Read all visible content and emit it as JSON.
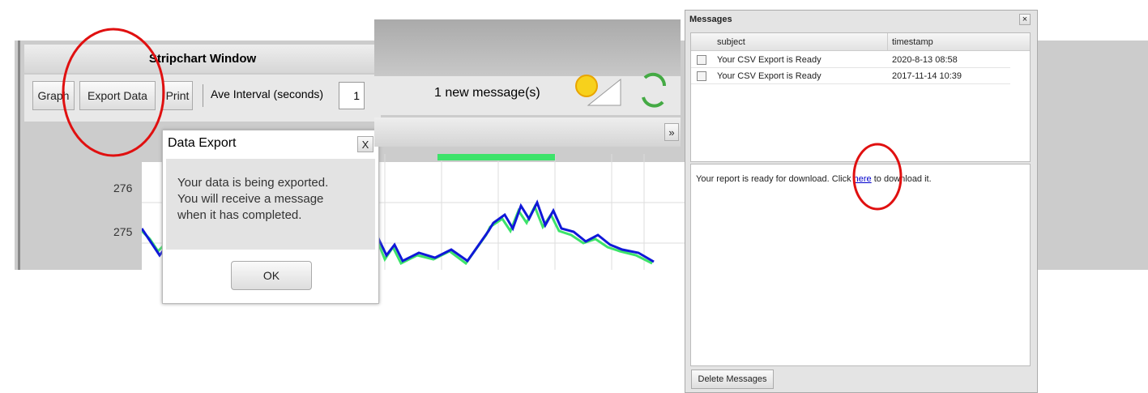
{
  "stripchart": {
    "title": "Stripchart Window",
    "toolbar": [
      "Graph",
      "Export Data",
      "Print"
    ],
    "interval_label": "Ave Interval (seconds)",
    "interval_value": "1",
    "y_labels": [
      "276",
      "275"
    ]
  },
  "dialog": {
    "title": "Data Export",
    "close": "X",
    "message": [
      "Your data is being exported.",
      "You will receive a message",
      "when it has completed."
    ],
    "button": "OK"
  },
  "notifier": {
    "text": "1 new message(s)",
    "expand": "»"
  },
  "messages": {
    "title": "Messages",
    "close": "×",
    "columns": [
      "subject",
      "timestamp"
    ],
    "rows": [
      [
        "Your CSV Export is Ready",
        "2020-8-13 08:58"
      ],
      [
        "Your CSV Export is Ready",
        "2017-11-14 10:39"
      ]
    ],
    "body": {
      "before": "Your report is ready for download. Click ",
      "link": "here",
      "after": " to download it."
    },
    "button": "Delete Messages"
  }
}
